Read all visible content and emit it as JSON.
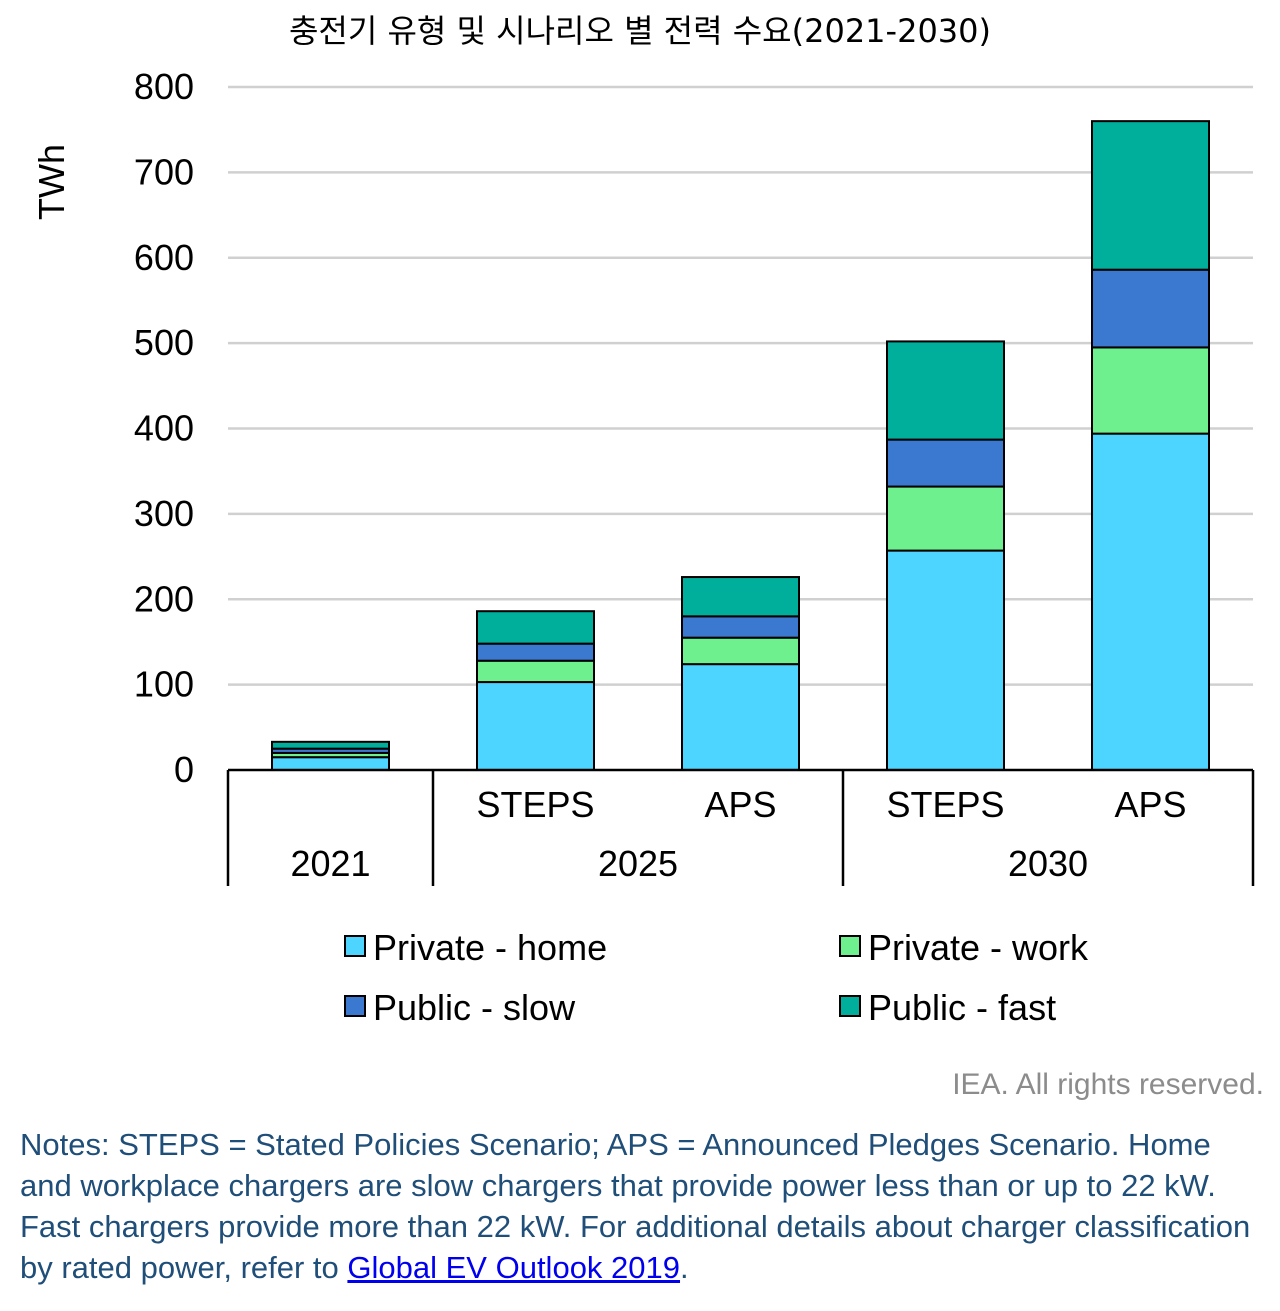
{
  "chart_data": {
    "type": "bar",
    "stacked": true,
    "title": "충전기 유형 및 시나리오 별 전력 수요(2021-2030)",
    "ylabel": "TWh",
    "ylim": [
      0,
      800
    ],
    "yticks": [
      0,
      100,
      200,
      300,
      400,
      500,
      600,
      700,
      800
    ],
    "grid": true,
    "legend_position": "bottom",
    "categories": [
      "",
      "STEPS",
      "APS",
      "STEPS",
      "APS"
    ],
    "category_groups": [
      {
        "label": "2021",
        "members": [
          0
        ]
      },
      {
        "label": "2025",
        "members": [
          1,
          2
        ]
      },
      {
        "label": "2030",
        "members": [
          3,
          4
        ]
      }
    ],
    "series": [
      {
        "name": "Private - home",
        "color": "#4dd5ff",
        "values": [
          15,
          103,
          124,
          257,
          394
        ]
      },
      {
        "name": "Private - work",
        "color": "#6ef08f",
        "values": [
          5,
          25,
          31,
          75,
          101
        ]
      },
      {
        "name": "Public - slow",
        "color": "#3b78d0",
        "values": [
          5,
          20,
          25,
          55,
          91
        ]
      },
      {
        "name": "Public - fast",
        "color": "#00ae9c",
        "values": [
          8,
          38,
          46,
          115,
          174
        ]
      }
    ]
  },
  "footer": {
    "credit": "IEA. All rights reserved.",
    "notes_text": "Notes: STEPS = Stated Policies Scenario; APS = Announced Pledges Scenario. Home and workplace chargers are slow chargers that provide power less than or up to 22 kW. Fast chargers provide more than 22 kW. For additional details about charger classification by rated power, refer to ",
    "link_text": "Global EV Outlook 2019",
    "notes_end": "."
  }
}
